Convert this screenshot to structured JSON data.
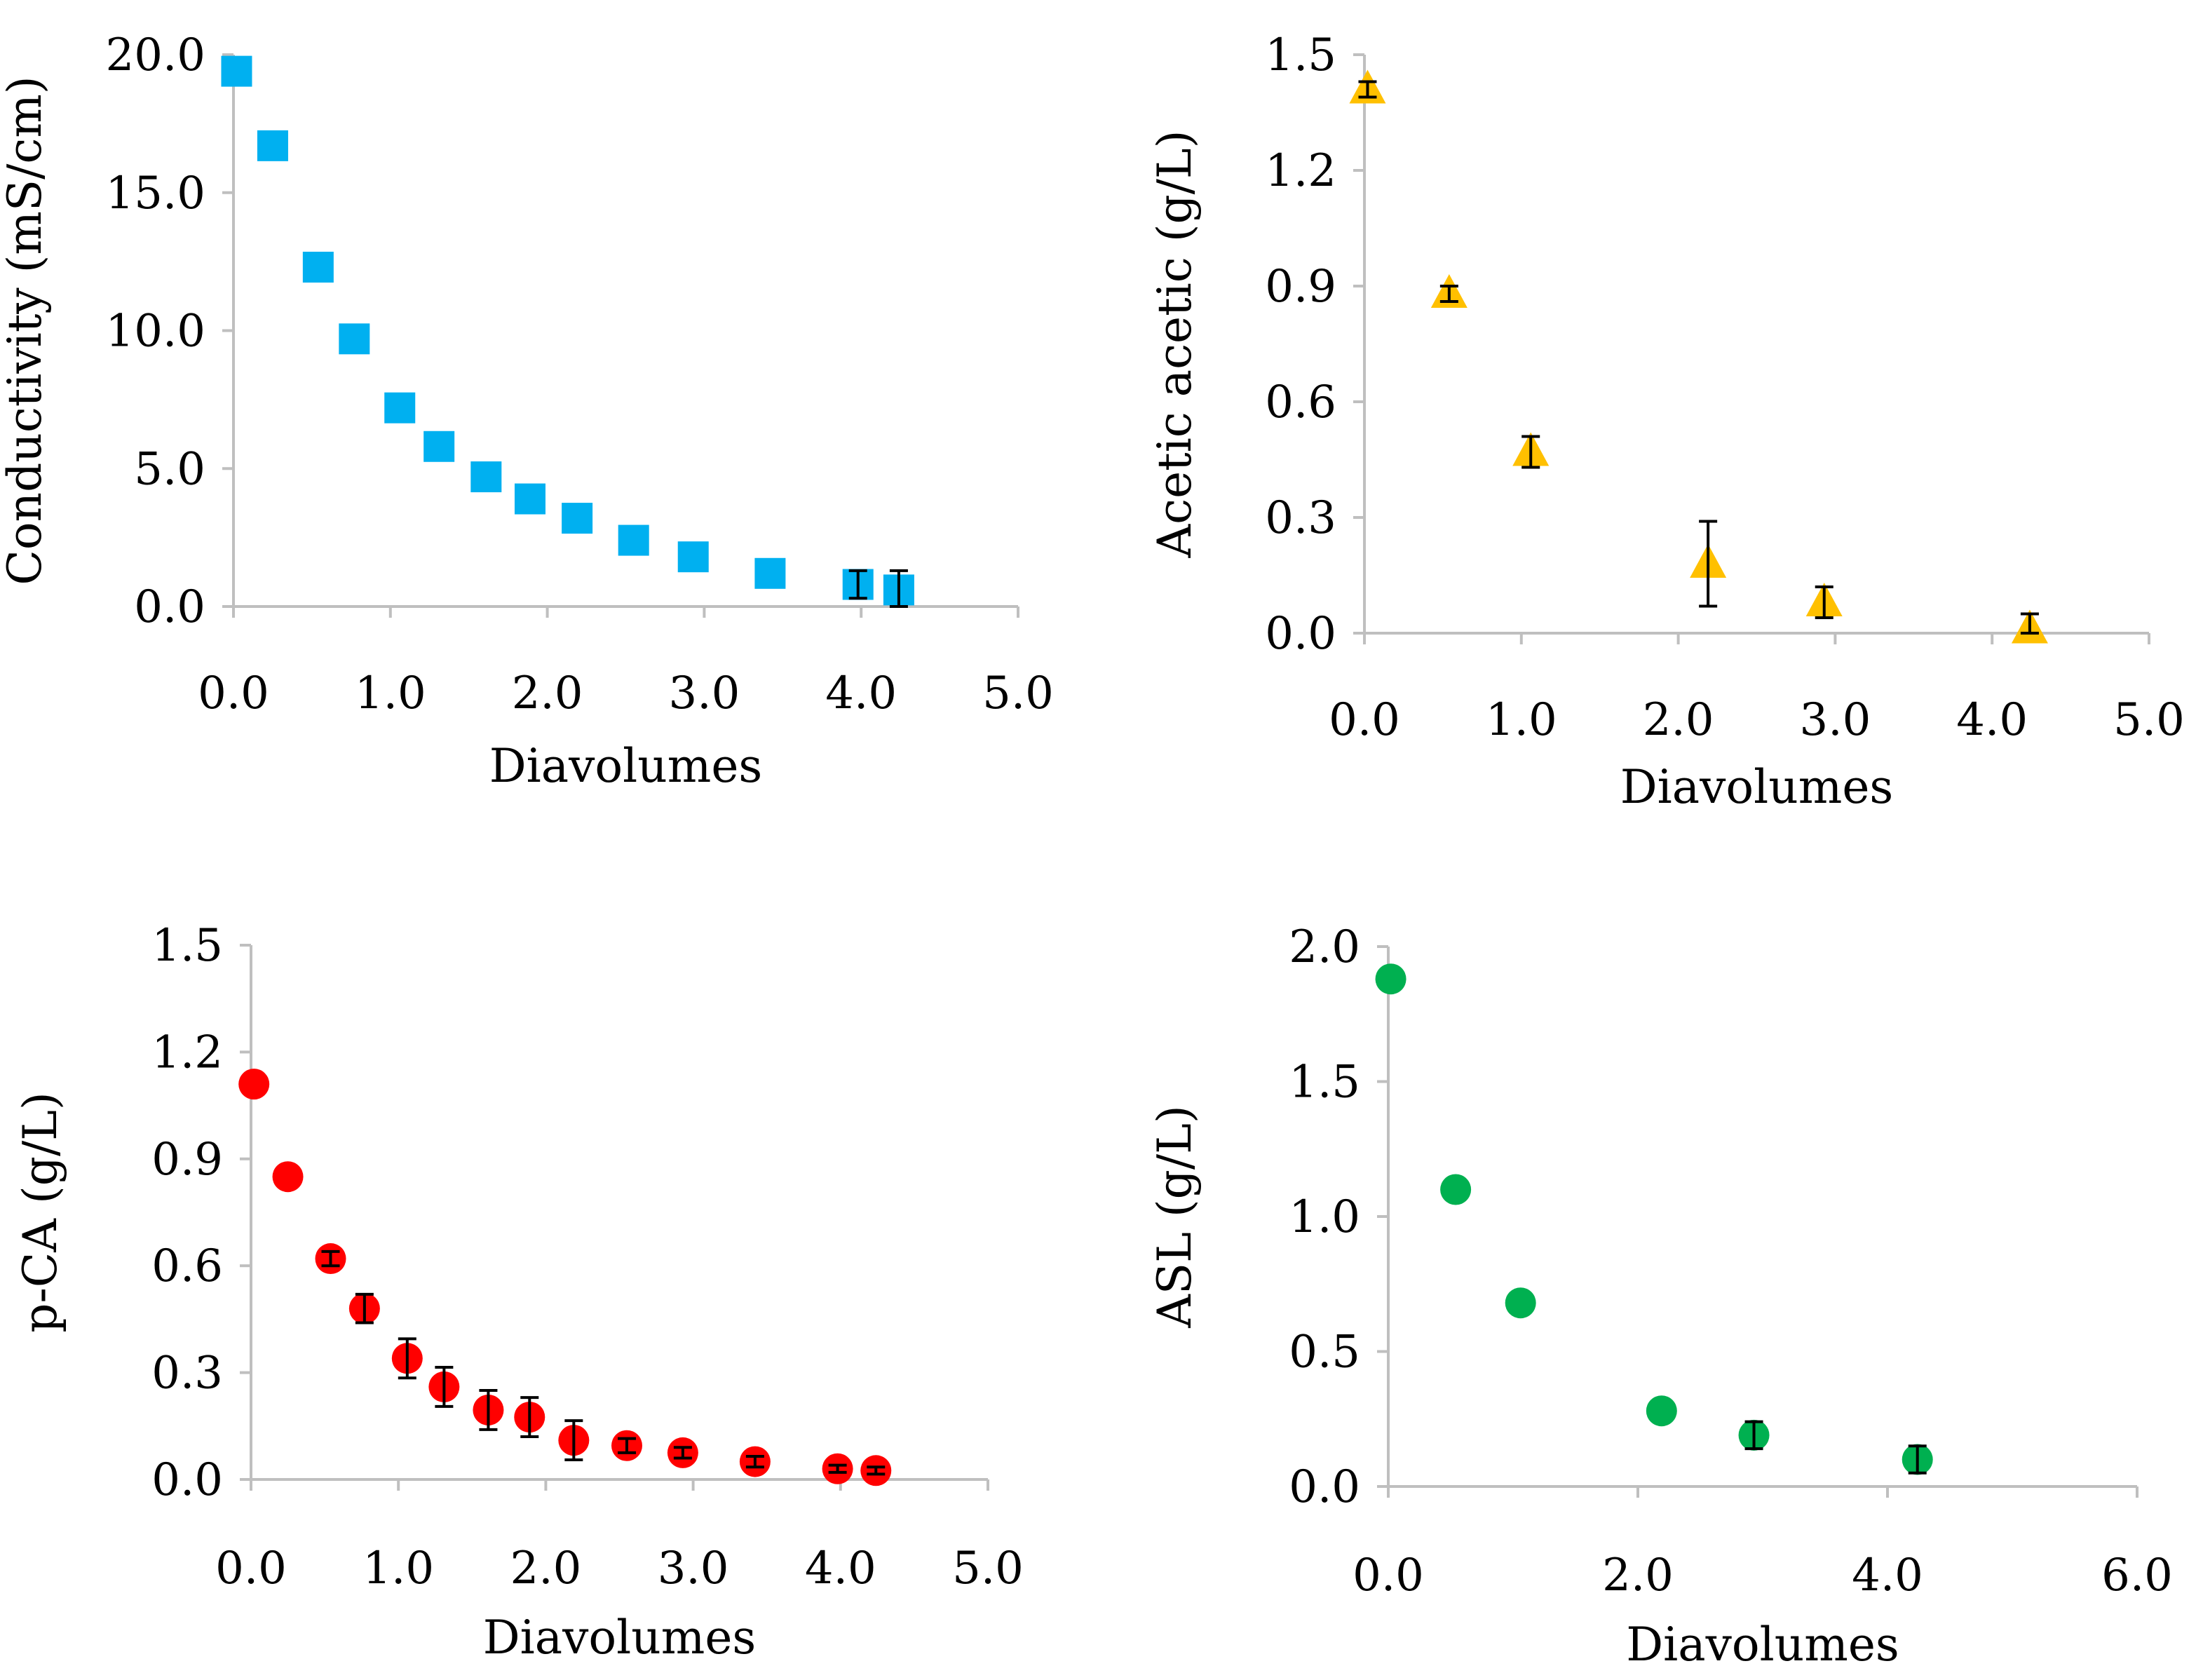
{
  "chart_data": [
    {
      "type": "scatter",
      "marker": "square",
      "color": "#00b0f0",
      "xlabel": "Diavolumes",
      "ylabel": "Conductivity (mS/cm)",
      "xlim": [
        0,
        5
      ],
      "ylim": [
        0,
        20
      ],
      "xticks": [
        0,
        1,
        2,
        3,
        4,
        5
      ],
      "xtick_labels": [
        "0.0",
        "1.0",
        "2.0",
        "3.0",
        "4.0",
        "5.0"
      ],
      "yticks": [
        0,
        5,
        10,
        15,
        20
      ],
      "ytick_labels": [
        "0.0",
        "5.0",
        "10.0",
        "15.0",
        "20.0"
      ],
      "points": [
        {
          "x": 0.02,
          "y": 19.4,
          "err": 0
        },
        {
          "x": 0.25,
          "y": 16.7,
          "err": 0
        },
        {
          "x": 0.54,
          "y": 12.3,
          "err": 0
        },
        {
          "x": 0.77,
          "y": 9.7,
          "err": 0
        },
        {
          "x": 1.06,
          "y": 7.2,
          "err": 0
        },
        {
          "x": 1.31,
          "y": 5.8,
          "err": 0
        },
        {
          "x": 1.61,
          "y": 4.7,
          "err": 0
        },
        {
          "x": 1.89,
          "y": 3.9,
          "err": 0
        },
        {
          "x": 2.19,
          "y": 3.2,
          "err": 0
        },
        {
          "x": 2.55,
          "y": 2.4,
          "err": 0
        },
        {
          "x": 2.93,
          "y": 1.8,
          "err": 0
        },
        {
          "x": 3.42,
          "y": 1.2,
          "err": 0
        },
        {
          "x": 3.98,
          "y": 0.8,
          "err": 0.5
        },
        {
          "x": 4.24,
          "y": 0.6,
          "err": 0.7
        }
      ]
    },
    {
      "type": "scatter",
      "marker": "triangle",
      "color": "#ffc000",
      "xlabel": "Diavolumes",
      "ylabel": "Acetic acetic (g/L)",
      "xlim": [
        0,
        5
      ],
      "ylim": [
        0,
        1.5
      ],
      "xticks": [
        0,
        1,
        2,
        3,
        4,
        5
      ],
      "xtick_labels": [
        "0.0",
        "1.0",
        "2.0",
        "3.0",
        "4.0",
        "5.0"
      ],
      "yticks": [
        0,
        0.3,
        0.6,
        0.9,
        1.2,
        1.5
      ],
      "ytick_labels": [
        "0.0",
        "0.3",
        "0.6",
        "0.9",
        "1.2",
        "1.5"
      ],
      "points": [
        {
          "x": 0.02,
          "y": 1.41,
          "err": 0.02
        },
        {
          "x": 0.54,
          "y": 0.88,
          "err": 0.02
        },
        {
          "x": 1.06,
          "y": 0.47,
          "err": 0.04
        },
        {
          "x": 2.19,
          "y": 0.18,
          "err": 0.11
        },
        {
          "x": 2.93,
          "y": 0.08,
          "err": 0.04
        },
        {
          "x": 4.24,
          "y": 0.01,
          "err": 0.04
        }
      ]
    },
    {
      "type": "scatter",
      "marker": "circle",
      "color": "#ff0000",
      "xlabel": "Diavolumes",
      "ylabel": "p-CA (g/L)",
      "xlim": [
        0,
        5
      ],
      "ylim": [
        0,
        1.5
      ],
      "xticks": [
        0,
        1,
        2,
        3,
        4,
        5
      ],
      "xtick_labels": [
        "0.0",
        "1.0",
        "2.0",
        "3.0",
        "4.0",
        "5.0"
      ],
      "yticks": [
        0,
        0.3,
        0.6,
        0.9,
        1.2,
        1.5
      ],
      "ytick_labels": [
        "0.0",
        "0.3",
        "0.6",
        "0.9",
        "1.2",
        "1.5"
      ],
      "points": [
        {
          "x": 0.02,
          "y": 1.11,
          "err": 0
        },
        {
          "x": 0.25,
          "y": 0.85,
          "err": 0
        },
        {
          "x": 0.54,
          "y": 0.62,
          "err": 0.02
        },
        {
          "x": 0.77,
          "y": 0.48,
          "err": 0.04
        },
        {
          "x": 1.06,
          "y": 0.34,
          "err": 0.055
        },
        {
          "x": 1.31,
          "y": 0.26,
          "err": 0.055
        },
        {
          "x": 1.61,
          "y": 0.195,
          "err": 0.055
        },
        {
          "x": 1.89,
          "y": 0.175,
          "err": 0.055
        },
        {
          "x": 2.19,
          "y": 0.11,
          "err": 0.055
        },
        {
          "x": 2.55,
          "y": 0.095,
          "err": 0.02
        },
        {
          "x": 2.93,
          "y": 0.075,
          "err": 0.015
        },
        {
          "x": 3.42,
          "y": 0.05,
          "err": 0.015
        },
        {
          "x": 3.98,
          "y": 0.03,
          "err": 0.01
        },
        {
          "x": 4.24,
          "y": 0.025,
          "err": 0.01
        }
      ]
    },
    {
      "type": "scatter",
      "marker": "circle",
      "color": "#00b050",
      "xlabel": "Diavolumes",
      "ylabel": "ASL (g/L)",
      "xlim": [
        0,
        6
      ],
      "ylim": [
        0,
        2
      ],
      "xticks": [
        0,
        2,
        4,
        6
      ],
      "xtick_labels": [
        "0.0",
        "2.0",
        "4.0",
        "6.0"
      ],
      "yticks": [
        0,
        0.5,
        1,
        1.5,
        2
      ],
      "ytick_labels": [
        "0.0",
        "0.5",
        "1.0",
        "1.5",
        "2.0"
      ],
      "points": [
        {
          "x": 0.02,
          "y": 1.88,
          "err": 0
        },
        {
          "x": 0.54,
          "y": 1.1,
          "err": 0
        },
        {
          "x": 1.06,
          "y": 0.68,
          "err": 0
        },
        {
          "x": 2.19,
          "y": 0.28,
          "err": 0
        },
        {
          "x": 2.93,
          "y": 0.19,
          "err": 0.05
        },
        {
          "x": 4.24,
          "y": 0.1,
          "err": 0.05
        }
      ]
    }
  ]
}
